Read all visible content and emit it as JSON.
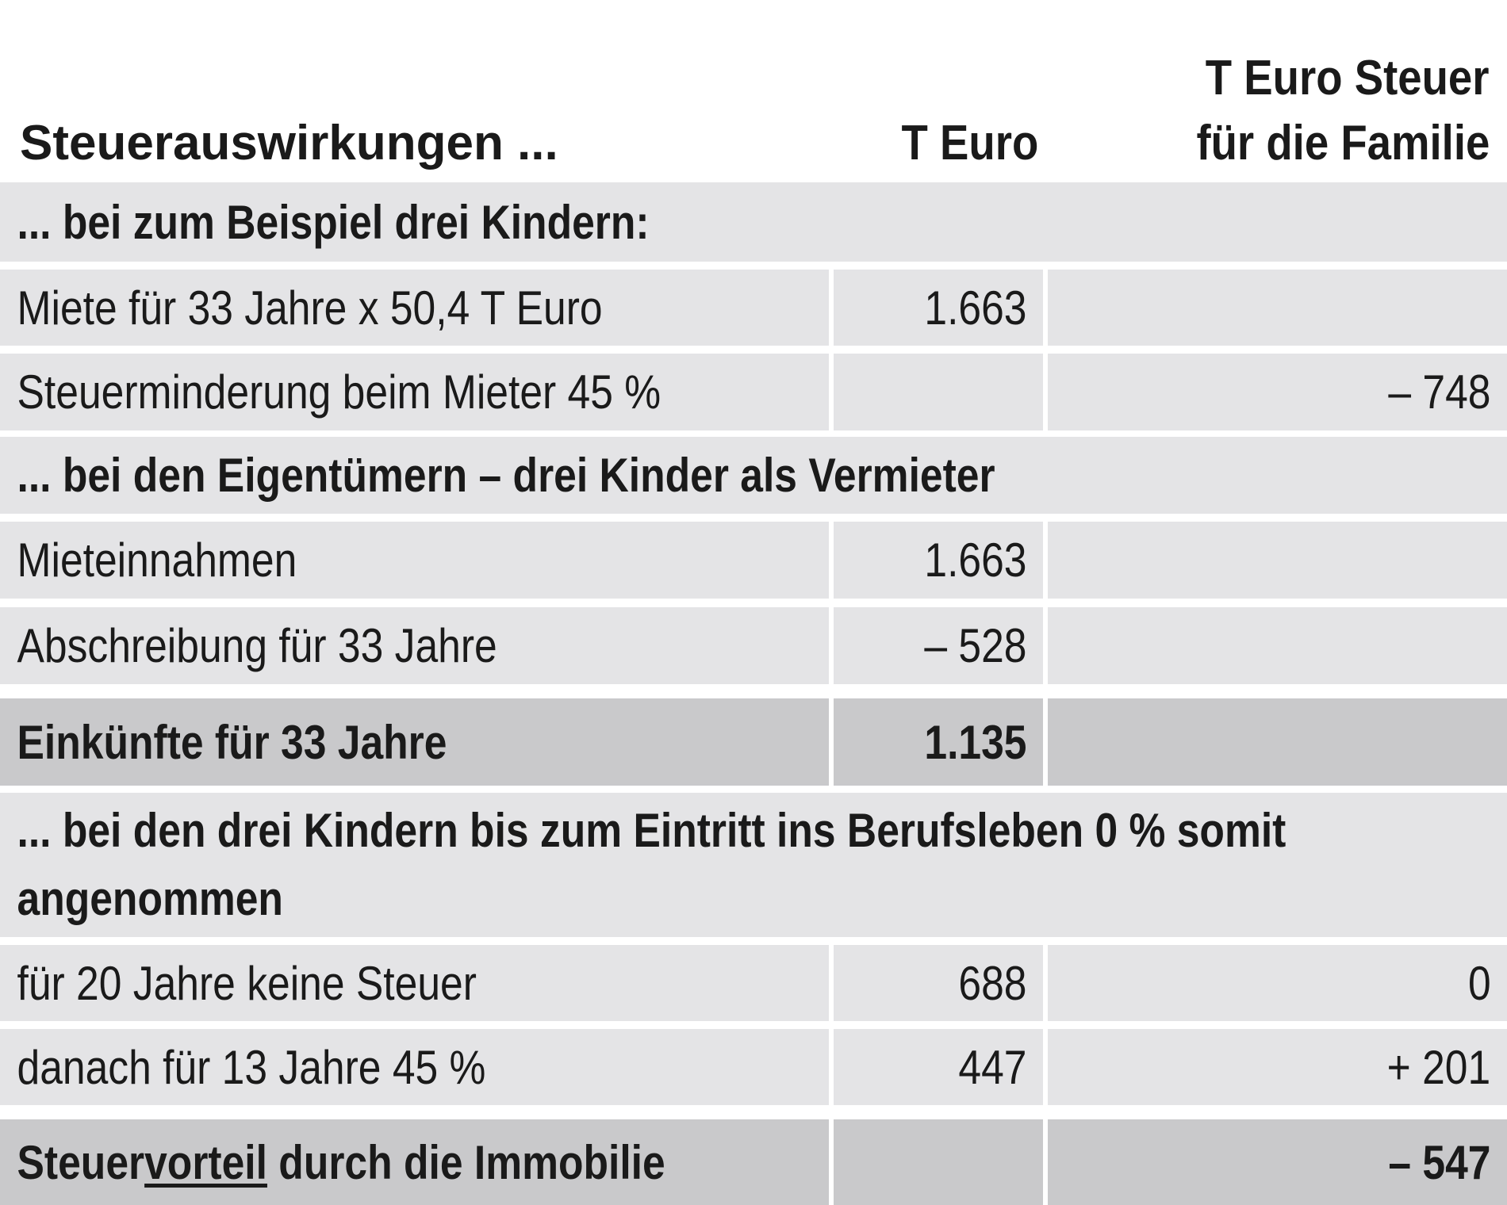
{
  "header": {
    "col1": "Steuerauswirkungen ...",
    "col2": "T Euro",
    "col3_line1": "T Euro Steuer",
    "col3_line2": "für die Familie"
  },
  "rows": [
    {
      "type": "section",
      "label": "... bei zum Beispiel drei Kindern:"
    },
    {
      "type": "data",
      "label": "Miete für 33 Jahre x 50,4 T Euro",
      "euro": "1.663",
      "tax": ""
    },
    {
      "type": "data",
      "label": "Steuerminderung beim Mieter 45 %",
      "euro": "",
      "tax": "– 748"
    },
    {
      "type": "section",
      "label": "... bei den Eigentümern – drei Kinder als Vermieter"
    },
    {
      "type": "data",
      "label": "Mieteinnahmen",
      "euro": "1.663",
      "tax": ""
    },
    {
      "type": "data",
      "label": "Abschreibung für 33 Jahre",
      "euro": "– 528",
      "tax": ""
    },
    {
      "type": "total",
      "label": "Einkünfte für 33 Jahre",
      "euro": "1.135",
      "tax": ""
    },
    {
      "type": "section",
      "label": "... bei den drei Kindern bis zum Eintritt ins Berufsleben 0 % somit angenommen"
    },
    {
      "type": "data",
      "label": "für 20 Jahre keine Steuer",
      "euro": "688",
      "tax": "0"
    },
    {
      "type": "data",
      "label": "danach für 13 Jahre 45 %",
      "euro": "447",
      "tax": "+ 201"
    },
    {
      "type": "total",
      "label_pre": "Steuer",
      "label_underlined": "vorteil",
      "label_post": " durch die Immobilie",
      "euro": "",
      "tax": "– 547"
    }
  ],
  "colors": {
    "light_row": "#e4e4e6",
    "dark_row": "#c9c9cb",
    "text": "#1a1a1a"
  }
}
